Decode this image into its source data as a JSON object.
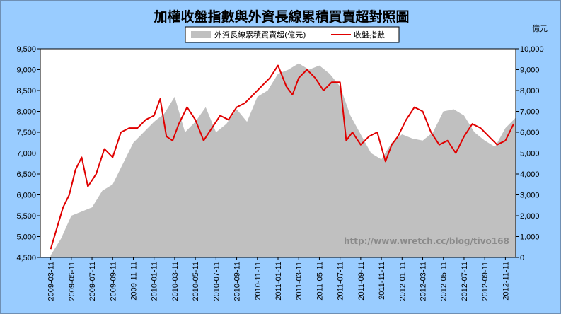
{
  "chart_data": {
    "type": "area+line",
    "title": "加權收盤指數與外資長線累積買賣超對照圖",
    "right_unit": "億元",
    "watermark": "http://www.wretch.cc/blog/tivo168",
    "legend": {
      "area_label": "外資長線累積買賣超(億元)",
      "line_label": "收盤指數"
    },
    "colors": {
      "plot_bg": "#ffffff",
      "page_bg": "#99ccff",
      "area": "#c0c0c0",
      "line": "#e00000"
    },
    "x_labels": [
      "2009-03-11",
      "2009-05-11",
      "2009-07-11",
      "2009-09-11",
      "2009-11-11",
      "2010-01-11",
      "2010-03-11",
      "2010-05-11",
      "2010-07-11",
      "2010-09-11",
      "2010-11-11",
      "2011-01-11",
      "2011-03-11",
      "2011-05-11",
      "2011-07-11",
      "2011-09-11",
      "2011-11-11",
      "2012-01-11",
      "2012-03-11",
      "2012-05-11",
      "2012-07-11",
      "2012-09-11",
      "2012-11-11"
    ],
    "left_axis": {
      "min": 4500,
      "max": 9500,
      "step": 500,
      "ticks": [
        "4,500",
        "5,000",
        "5,500",
        "6,000",
        "6,500",
        "7,000",
        "7,500",
        "8,000",
        "8,500",
        "9,000",
        "9,500"
      ]
    },
    "right_axis": {
      "min": 0,
      "max": 10000,
      "step": 1000,
      "ticks": [
        "0",
        "1,000",
        "2,000",
        "3,000",
        "4,000",
        "5,000",
        "6,000",
        "7,000",
        "8,000",
        "9,000",
        "10,000"
      ]
    },
    "series": [
      {
        "name": "外資長線累積買賣超(億元)",
        "axis": "right",
        "x_index": [
          0,
          0.5,
          1,
          1.5,
          2,
          2.5,
          3,
          3.5,
          4,
          4.5,
          5,
          5.5,
          6,
          6.5,
          7,
          7.5,
          8,
          8.5,
          9,
          9.5,
          10,
          10.5,
          11,
          11.5,
          12,
          12.5,
          13,
          13.5,
          14,
          14.5,
          15,
          15.5,
          16,
          16.5,
          17,
          17.5,
          18,
          18.5,
          19,
          19.5,
          20,
          20.5,
          21,
          21.5,
          22,
          22.5
        ],
        "values": [
          100,
          900,
          2000,
          2200,
          2400,
          3200,
          3500,
          4500,
          5500,
          6000,
          6500,
          6900,
          7700,
          6000,
          6500,
          7200,
          6000,
          6400,
          7100,
          6500,
          7700,
          8000,
          8800,
          9000,
          9300,
          9000,
          9200,
          8800,
          8200,
          6800,
          5900,
          5000,
          4700,
          5500,
          5900,
          5700,
          5600,
          6000,
          7000,
          7100,
          6800,
          6000,
          5600,
          5300,
          6200,
          6700
        ]
      },
      {
        "name": "收盤指數",
        "axis": "left",
        "x_index": [
          0,
          0.3,
          0.6,
          0.9,
          1.2,
          1.5,
          1.8,
          2.2,
          2.6,
          3.0,
          3.4,
          3.8,
          4.2,
          4.6,
          5.0,
          5.3,
          5.6,
          5.9,
          6.2,
          6.6,
          7.0,
          7.4,
          7.8,
          8.2,
          8.6,
          9.0,
          9.4,
          9.8,
          10.2,
          10.6,
          11.0,
          11.4,
          11.7,
          12.0,
          12.4,
          12.8,
          13.2,
          13.6,
          14.0,
          14.3,
          14.6,
          15.0,
          15.4,
          15.8,
          16.2,
          16.5,
          16.8,
          17.2,
          17.6,
          18.0,
          18.4,
          18.8,
          19.2,
          19.6,
          20.0,
          20.4,
          20.8,
          21.2,
          21.6,
          22.0,
          22.4
        ],
        "values": [
          4700,
          5200,
          5700,
          6000,
          6600,
          6900,
          6200,
          6500,
          7100,
          6900,
          7500,
          7600,
          7600,
          7800,
          7900,
          8300,
          7400,
          7300,
          7700,
          8100,
          7800,
          7300,
          7600,
          7900,
          7800,
          8100,
          8200,
          8400,
          8600,
          8800,
          9100,
          8600,
          8400,
          8800,
          9000,
          8800,
          8500,
          8700,
          8700,
          7300,
          7500,
          7200,
          7400,
          7500,
          6800,
          7200,
          7400,
          7800,
          8100,
          8000,
          7500,
          7200,
          7300,
          7000,
          7400,
          7700,
          7600,
          7400,
          7200,
          7300,
          7700
        ]
      }
    ]
  }
}
